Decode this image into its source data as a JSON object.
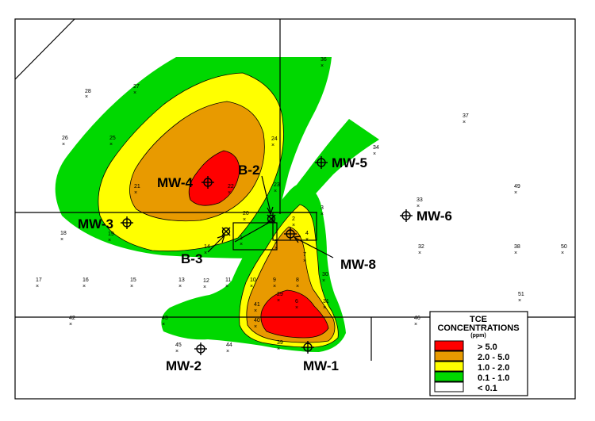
{
  "colors": {
    "gt5": "#ff0000",
    "c2to5": "#e89a00",
    "c1to2": "#ffff00",
    "c01to1": "#00d800",
    "lt01": "#ffffff"
  },
  "wells": {
    "mw1": "MW-1",
    "mw2": "MW-2",
    "mw3": "MW-3",
    "mw4": "MW-4",
    "mw5": "MW-5",
    "mw6": "MW-6",
    "mw8": "MW-8",
    "b2": "B-2",
    "b3": "B-3"
  },
  "legend": {
    "title_line1": "TCE",
    "title_line2": "CONCENTRATIONS",
    "unit": "(ppm)",
    "items": [
      "> 5.0",
      "2.0 - 5.0",
      "1.0 - 2.0",
      "0.1 - 1.0",
      "< 0.1"
    ]
  },
  "sample_points": [
    {
      "id": "28"
    },
    {
      "id": "27"
    },
    {
      "id": "26"
    },
    {
      "id": "25"
    },
    {
      "id": "36"
    },
    {
      "id": "24"
    },
    {
      "id": "23"
    },
    {
      "id": "21"
    },
    {
      "id": "22"
    },
    {
      "id": "37"
    },
    {
      "id": "34"
    },
    {
      "id": "33"
    },
    {
      "id": "49"
    },
    {
      "id": "18"
    },
    {
      "id": "19"
    },
    {
      "id": "14"
    },
    {
      "id": "20"
    },
    {
      "id": "1"
    },
    {
      "id": "2"
    },
    {
      "id": "3"
    },
    {
      "id": "4"
    },
    {
      "id": "5"
    },
    {
      "id": "7"
    },
    {
      "id": "32"
    },
    {
      "id": "38"
    },
    {
      "id": "50"
    },
    {
      "id": "17"
    },
    {
      "id": "16"
    },
    {
      "id": "15"
    },
    {
      "id": "13"
    },
    {
      "id": "12"
    },
    {
      "id": "11"
    },
    {
      "id": "10"
    },
    {
      "id": "9"
    },
    {
      "id": "8"
    },
    {
      "id": "30"
    },
    {
      "id": "51"
    },
    {
      "id": "42"
    },
    {
      "id": "43"
    },
    {
      "id": "41"
    },
    {
      "id": "40"
    },
    {
      "id": "39"
    },
    {
      "id": "31"
    },
    {
      "id": "46"
    },
    {
      "id": "45"
    },
    {
      "id": "44"
    },
    {
      "id": "6"
    },
    {
      "id": "29"
    }
  ]
}
